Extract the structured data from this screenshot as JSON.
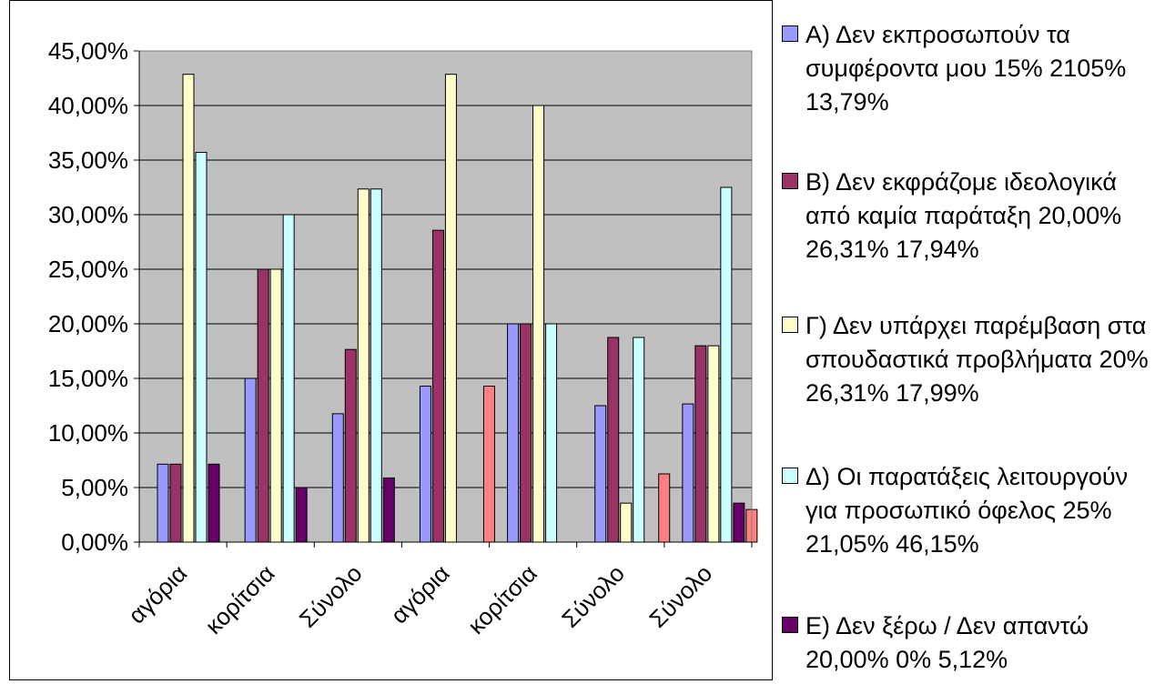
{
  "chart_data": {
    "type": "bar",
    "title": "",
    "xlabel": "",
    "ylabel": "",
    "categories": [
      "αγόρια",
      "κορίτσια",
      "Σύνολο",
      "αγόρια",
      "κορίτσια",
      "Σύνολο",
      "Σύνολο"
    ],
    "ylim": [
      0,
      45
    ],
    "yticks": [
      "0,00%",
      "5,00%",
      "10,00%",
      "15,00%",
      "20,00%",
      "25,00%",
      "30,00%",
      "35,00%",
      "40,00%",
      "45,00%"
    ],
    "grid": true,
    "legend_position": "right",
    "plot_background": "#c0c0c0",
    "series": [
      {
        "name": "Α) Δεν εκπροσωπούν τα συμφέροντα μου 15% 2105% 13,79%",
        "color": "#9999ff",
        "values": [
          7.14,
          15.0,
          11.76,
          14.29,
          20.0,
          12.5,
          12.66
        ]
      },
      {
        "name": "Β) Δεν εκφράζομε ιδεολογικά από καμία παράταξη 20,00% 26,31% 17,94%",
        "color": "#993366",
        "values": [
          7.14,
          25.0,
          17.65,
          28.57,
          20.0,
          18.75,
          17.99
        ]
      },
      {
        "name": "Γ) Δεν υπάρχει παρέμβαση στα σπουδαστικά προβλήματα 20% 26,31% 17,99%",
        "color": "#ffffcc",
        "values": [
          42.86,
          25.0,
          32.35,
          42.86,
          40.0,
          3.57,
          17.99
        ]
      },
      {
        "name": "Δ) Οι παρατάξεις λειτουργούν για προσωπικό όφελος 25% 21,05% 46,15%",
        "color": "#ccffff",
        "values": [
          35.71,
          30.0,
          32.35,
          0,
          20.0,
          18.75,
          32.5
        ]
      },
      {
        "name": "Ε) Δεν ξέρω / Δεν απαντώ 20,00% 0% 5,12%",
        "color": "#660066",
        "values": [
          7.14,
          5.0,
          5.88,
          0,
          0,
          0,
          3.57
        ]
      },
      {
        "name": "",
        "color": "#ff8080",
        "in_legend": false,
        "values": [
          0,
          0,
          0,
          14.29,
          0,
          6.25,
          2.99
        ]
      }
    ]
  }
}
